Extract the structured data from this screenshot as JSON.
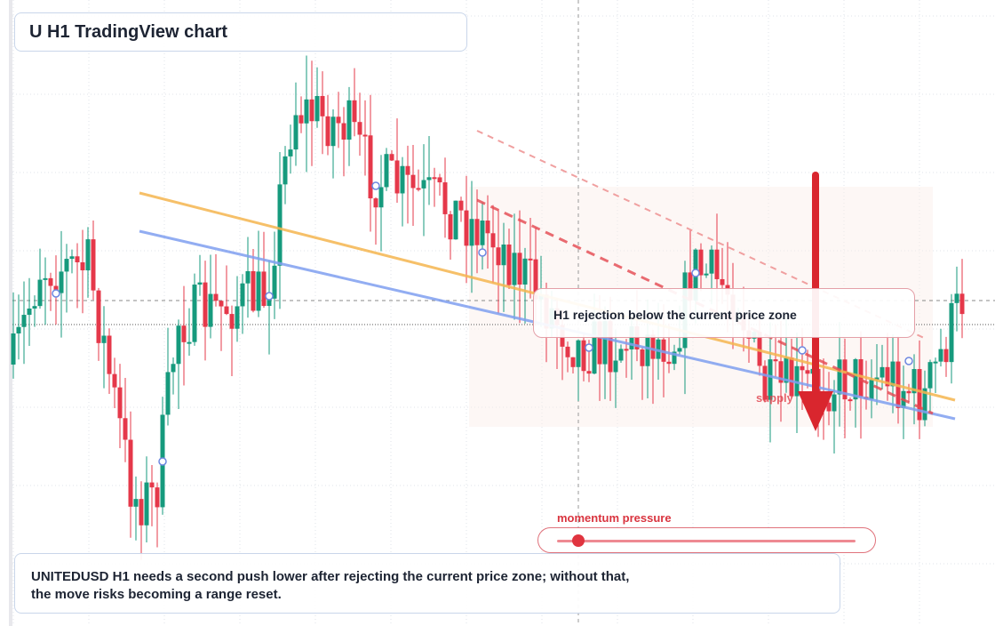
{
  "header": {
    "title": "U H1 TradingView chart"
  },
  "callout": {
    "text": "H1 rejection below the current price zone"
  },
  "zone_label": "supply",
  "momentum": {
    "label": "momentum pressure"
  },
  "caption": {
    "lines": [
      "UNITEDUSD H1 needs a second push lower after rejecting the current price zone; without that,",
      "the move risks becoming a range reset."
    ]
  }
}
